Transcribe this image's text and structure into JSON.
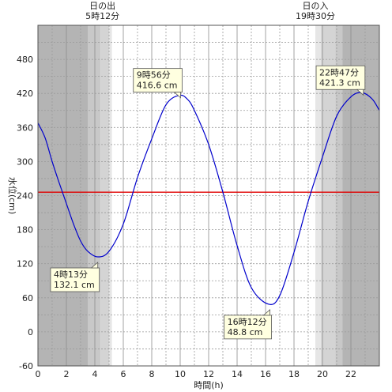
{
  "chart_data": {
    "type": "line",
    "xlabel": "時間(h)",
    "ylabel": "水位(cm)",
    "xlim": [
      0,
      24
    ],
    "ylim": [
      -60,
      540
    ],
    "x_ticks": [
      0,
      2,
      4,
      6,
      8,
      10,
      12,
      14,
      16,
      18,
      20,
      22
    ],
    "y_ticks": [
      -60,
      0,
      60,
      120,
      180,
      240,
      300,
      360,
      420,
      480
    ],
    "grid": true,
    "reference_line": {
      "value": 246,
      "color": "#e00000"
    },
    "series": [
      {
        "color": "#0000cc",
        "points": [
          [
            0,
            368
          ],
          [
            0.5,
            342
          ],
          [
            1,
            300
          ],
          [
            1.5,
            262
          ],
          [
            2,
            226
          ],
          [
            2.5,
            190
          ],
          [
            3,
            160
          ],
          [
            3.5,
            142
          ],
          [
            4.22,
            132.1
          ],
          [
            5,
            142
          ],
          [
            6,
            190
          ],
          [
            7,
            272
          ],
          [
            8,
            340
          ],
          [
            9,
            400
          ],
          [
            9.93,
            416.6
          ],
          [
            10.5,
            410
          ],
          [
            11,
            390
          ],
          [
            12,
            330
          ],
          [
            13,
            246
          ],
          [
            14,
            152
          ],
          [
            15,
            78
          ],
          [
            16.2,
            48.8
          ],
          [
            17,
            64
          ],
          [
            18,
            140
          ],
          [
            19,
            230
          ],
          [
            20,
            308
          ],
          [
            21,
            380
          ],
          [
            22,
            414
          ],
          [
            22.78,
            421.3
          ],
          [
            23.5,
            410
          ],
          [
            24,
            390
          ]
        ]
      }
    ],
    "extremes": [
      {
        "type": "low",
        "label": "4時13分",
        "value": "132.1 cm",
        "x": 4.22,
        "y": 132.1
      },
      {
        "type": "high",
        "label": "9時56分",
        "value": "416.6 cm",
        "x": 9.93,
        "y": 416.6
      },
      {
        "type": "low",
        "label": "16時12分",
        "value": "48.8 cm",
        "x": 16.2,
        "y": 48.8
      },
      {
        "type": "high",
        "label": "22時47分",
        "value": "421.3 cm",
        "x": 22.78,
        "y": 421.3
      }
    ],
    "sunrise": {
      "label": "日の出",
      "time": "5時12分",
      "x": 5.2
    },
    "sunset": {
      "label": "日の入",
      "time": "19時30分",
      "x": 19.5
    },
    "shading": [
      {
        "from": 0,
        "to": 3.5,
        "color": "#b4b4b4"
      },
      {
        "from": 3.5,
        "to": 4.4,
        "color": "#c8c8c8"
      },
      {
        "from": 4.4,
        "to": 5.0,
        "color": "#d4d4d4"
      },
      {
        "from": 5.0,
        "to": 5.2,
        "color": "#e6e6e6"
      },
      {
        "from": 19.5,
        "to": 19.9,
        "color": "#e6e6e6"
      },
      {
        "from": 19.9,
        "to": 20.9,
        "color": "#d4d4d4"
      },
      {
        "from": 20.9,
        "to": 21.4,
        "color": "#c8c8c8"
      },
      {
        "from": 21.4,
        "to": 24,
        "color": "#b4b4b4"
      }
    ]
  }
}
